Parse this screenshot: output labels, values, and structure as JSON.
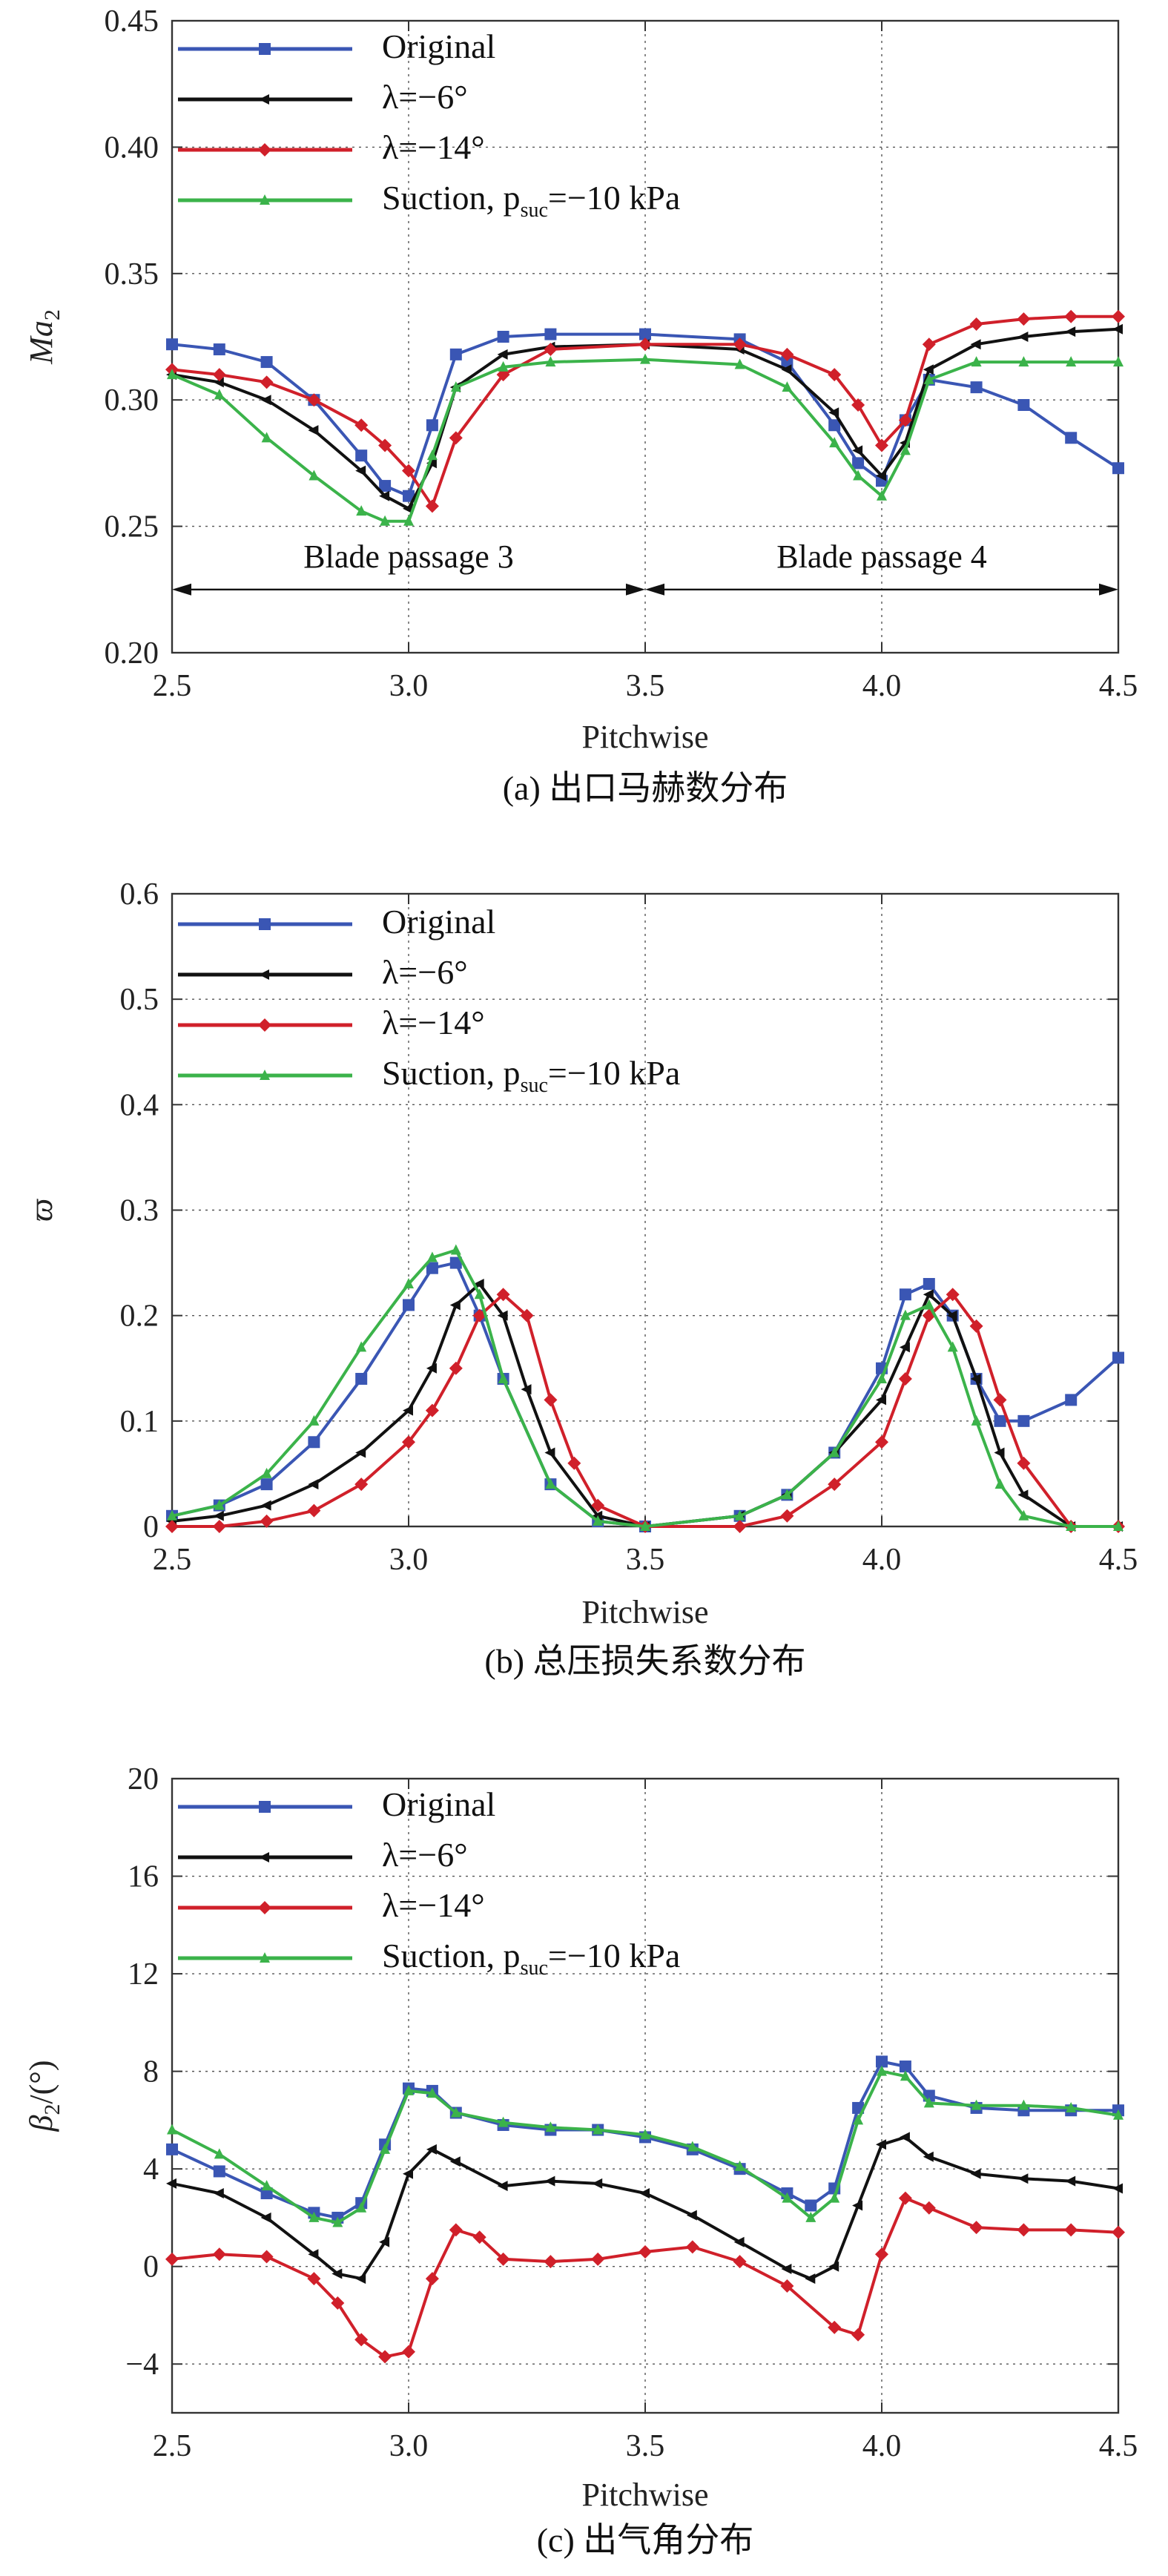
{
  "legend_labels": {
    "original": "Original",
    "lam6": "λ=−6°",
    "lam14": "λ=−14°",
    "suction": "Suction, p",
    "suction_sub": "suc",
    "suction_tail": "=−10 kPa"
  },
  "colors": {
    "original": "#3a56b4",
    "lam6": "#111111",
    "lam14": "#d0202a",
    "suction": "#3bb34a"
  },
  "chart_data": [
    {
      "type": "line",
      "caption": "(a) 出口马赫数分布",
      "xlabel": "Pitchwise",
      "ylabel_main": "Ma",
      "ylabel_sub": "2",
      "xlim": [
        2.5,
        4.5
      ],
      "ylim": [
        0.2,
        0.45
      ],
      "xticks": [
        "2.5",
        "3.0",
        "3.5",
        "4.0",
        "4.5"
      ],
      "yticks": [
        "0.20",
        "0.25",
        "0.30",
        "0.35",
        "0.40",
        "0.45"
      ],
      "grid": true,
      "legend_position": "top-left",
      "annotations": [
        "Blade passage 3",
        "Blade passage 4"
      ],
      "series": [
        {
          "key": "original",
          "x": [
            2.5,
            2.6,
            2.7,
            2.8,
            2.9,
            2.95,
            3.0,
            3.05,
            3.1,
            3.2,
            3.3,
            3.5,
            3.7,
            3.8,
            3.9,
            3.95,
            4.0,
            4.05,
            4.1,
            4.2,
            4.3,
            4.4,
            4.5
          ],
          "y": [
            0.322,
            0.32,
            0.315,
            0.3,
            0.278,
            0.266,
            0.262,
            0.29,
            0.318,
            0.325,
            0.326,
            0.326,
            0.324,
            0.315,
            0.29,
            0.275,
            0.268,
            0.292,
            0.308,
            0.305,
            0.298,
            0.285,
            0.273
          ]
        },
        {
          "key": "lam6",
          "x": [
            2.5,
            2.6,
            2.7,
            2.8,
            2.9,
            2.95,
            3.0,
            3.05,
            3.1,
            3.2,
            3.3,
            3.5,
            3.7,
            3.8,
            3.9,
            3.95,
            4.0,
            4.05,
            4.1,
            4.2,
            4.3,
            4.4,
            4.5
          ],
          "y": [
            0.31,
            0.307,
            0.3,
            0.288,
            0.272,
            0.262,
            0.257,
            0.275,
            0.305,
            0.318,
            0.321,
            0.322,
            0.32,
            0.312,
            0.295,
            0.28,
            0.27,
            0.283,
            0.312,
            0.322,
            0.325,
            0.327,
            0.328
          ]
        },
        {
          "key": "lam14",
          "x": [
            2.5,
            2.6,
            2.7,
            2.8,
            2.9,
            2.95,
            3.0,
            3.05,
            3.1,
            3.2,
            3.3,
            3.5,
            3.7,
            3.8,
            3.9,
            3.95,
            4.0,
            4.05,
            4.1,
            4.2,
            4.3,
            4.4,
            4.5
          ],
          "y": [
            0.312,
            0.31,
            0.307,
            0.3,
            0.29,
            0.282,
            0.272,
            0.258,
            0.285,
            0.31,
            0.32,
            0.322,
            0.322,
            0.318,
            0.31,
            0.298,
            0.282,
            0.292,
            0.322,
            0.33,
            0.332,
            0.333,
            0.333
          ]
        },
        {
          "key": "suction",
          "x": [
            2.5,
            2.6,
            2.7,
            2.8,
            2.9,
            2.95,
            3.0,
            3.05,
            3.1,
            3.2,
            3.3,
            3.5,
            3.7,
            3.8,
            3.9,
            3.95,
            4.0,
            4.05,
            4.1,
            4.2,
            4.3,
            4.4,
            4.5
          ],
          "y": [
            0.31,
            0.302,
            0.285,
            0.27,
            0.256,
            0.252,
            0.252,
            0.278,
            0.305,
            0.313,
            0.315,
            0.316,
            0.314,
            0.305,
            0.283,
            0.27,
            0.262,
            0.28,
            0.308,
            0.315,
            0.315,
            0.315,
            0.315
          ]
        }
      ]
    },
    {
      "type": "line",
      "caption": "(b) 总压损失系数分布",
      "xlabel": "Pitchwise",
      "ylabel_main": "ϖ",
      "ylabel_sub": "",
      "xlim": [
        2.5,
        4.5
      ],
      "ylim": [
        0,
        0.6
      ],
      "xticks": [
        "2.5",
        "3.0",
        "3.5",
        "4.0",
        "4.5"
      ],
      "yticks": [
        "0",
        "0.1",
        "0.2",
        "0.3",
        "0.4",
        "0.5",
        "0.6"
      ],
      "grid": true,
      "legend_position": "top-left",
      "series": [
        {
          "key": "original",
          "x": [
            2.5,
            2.6,
            2.7,
            2.8,
            2.9,
            3.0,
            3.05,
            3.1,
            3.15,
            3.2,
            3.3,
            3.4,
            3.5,
            3.7,
            3.8,
            3.9,
            4.0,
            4.05,
            4.1,
            4.15,
            4.2,
            4.25,
            4.3,
            4.4,
            4.5
          ],
          "y": [
            0.01,
            0.02,
            0.04,
            0.08,
            0.14,
            0.21,
            0.245,
            0.25,
            0.2,
            0.14,
            0.04,
            0.005,
            0.0,
            0.01,
            0.03,
            0.07,
            0.15,
            0.22,
            0.23,
            0.2,
            0.14,
            0.1,
            0.1,
            0.12,
            0.16
          ]
        },
        {
          "key": "lam6",
          "x": [
            2.5,
            2.6,
            2.7,
            2.8,
            2.9,
            3.0,
            3.05,
            3.1,
            3.15,
            3.2,
            3.25,
            3.3,
            3.4,
            3.5,
            3.7,
            3.8,
            3.9,
            4.0,
            4.05,
            4.1,
            4.15,
            4.2,
            4.25,
            4.3,
            4.4,
            4.5
          ],
          "y": [
            0.005,
            0.01,
            0.02,
            0.04,
            0.07,
            0.11,
            0.15,
            0.21,
            0.23,
            0.2,
            0.13,
            0.07,
            0.01,
            0.0,
            0.01,
            0.03,
            0.07,
            0.12,
            0.17,
            0.22,
            0.2,
            0.14,
            0.07,
            0.03,
            0.0,
            0.0
          ]
        },
        {
          "key": "lam14",
          "x": [
            2.5,
            2.6,
            2.7,
            2.8,
            2.9,
            3.0,
            3.05,
            3.1,
            3.15,
            3.2,
            3.25,
            3.3,
            3.35,
            3.4,
            3.5,
            3.7,
            3.8,
            3.9,
            4.0,
            4.05,
            4.1,
            4.15,
            4.2,
            4.25,
            4.3,
            4.4,
            4.5
          ],
          "y": [
            0.0,
            0.0,
            0.005,
            0.015,
            0.04,
            0.08,
            0.11,
            0.15,
            0.2,
            0.22,
            0.2,
            0.12,
            0.06,
            0.02,
            0.0,
            0.0,
            0.01,
            0.04,
            0.08,
            0.14,
            0.2,
            0.22,
            0.19,
            0.12,
            0.06,
            0.0,
            0.0
          ]
        },
        {
          "key": "suction",
          "x": [
            2.5,
            2.6,
            2.7,
            2.8,
            2.9,
            3.0,
            3.05,
            3.1,
            3.15,
            3.2,
            3.3,
            3.4,
            3.5,
            3.7,
            3.8,
            3.9,
            4.0,
            4.05,
            4.1,
            4.15,
            4.2,
            4.25,
            4.3,
            4.4,
            4.5
          ],
          "y": [
            0.01,
            0.02,
            0.05,
            0.1,
            0.17,
            0.23,
            0.255,
            0.262,
            0.22,
            0.14,
            0.04,
            0.005,
            0.0,
            0.01,
            0.03,
            0.07,
            0.14,
            0.2,
            0.21,
            0.17,
            0.1,
            0.04,
            0.01,
            0.0,
            0.0
          ]
        }
      ]
    },
    {
      "type": "line",
      "caption": "(c) 出气角分布",
      "xlabel": "Pitchwise",
      "ylabel_main": "β",
      "ylabel_sub": "2",
      "ylabel_tail": "/(°)",
      "xlim": [
        2.5,
        4.5
      ],
      "ylim": [
        -6,
        20
      ],
      "xticks": [
        "2.5",
        "3.0",
        "3.5",
        "4.0",
        "4.5"
      ],
      "yticks": [
        "−4",
        "0",
        "4",
        "8",
        "12",
        "16",
        "20"
      ],
      "ytick_values": [
        -4,
        0,
        4,
        8,
        12,
        16,
        20
      ],
      "grid": true,
      "legend_position": "top-left",
      "series": [
        {
          "key": "original",
          "x": [
            2.5,
            2.6,
            2.7,
            2.8,
            2.85,
            2.9,
            2.95,
            3.0,
            3.05,
            3.1,
            3.2,
            3.3,
            3.4,
            3.5,
            3.6,
            3.7,
            3.8,
            3.85,
            3.9,
            3.95,
            4.0,
            4.05,
            4.1,
            4.2,
            4.3,
            4.4,
            4.5
          ],
          "y": [
            4.8,
            3.9,
            3.0,
            2.2,
            2.0,
            2.6,
            5.0,
            7.3,
            7.2,
            6.3,
            5.8,
            5.6,
            5.6,
            5.3,
            4.8,
            4.0,
            3.0,
            2.5,
            3.2,
            6.5,
            8.4,
            8.2,
            7.0,
            6.5,
            6.4,
            6.4,
            6.4
          ]
        },
        {
          "key": "lam6",
          "x": [
            2.5,
            2.6,
            2.7,
            2.8,
            2.85,
            2.9,
            2.95,
            3.0,
            3.05,
            3.1,
            3.2,
            3.3,
            3.4,
            3.5,
            3.6,
            3.7,
            3.8,
            3.85,
            3.9,
            3.95,
            4.0,
            4.05,
            4.1,
            4.2,
            4.3,
            4.4,
            4.5
          ],
          "y": [
            3.4,
            3.0,
            2.0,
            0.5,
            -0.3,
            -0.5,
            1.0,
            3.8,
            4.8,
            4.3,
            3.3,
            3.5,
            3.4,
            3.0,
            2.1,
            1.0,
            -0.1,
            -0.5,
            0.0,
            2.5,
            5.0,
            5.3,
            4.5,
            3.8,
            3.6,
            3.5,
            3.2
          ]
        },
        {
          "key": "lam14",
          "x": [
            2.5,
            2.6,
            2.7,
            2.8,
            2.85,
            2.9,
            2.95,
            3.0,
            3.05,
            3.1,
            3.15,
            3.2,
            3.3,
            3.4,
            3.5,
            3.6,
            3.7,
            3.8,
            3.9,
            3.95,
            4.0,
            4.05,
            4.1,
            4.2,
            4.3,
            4.4,
            4.5
          ],
          "y": [
            0.3,
            0.5,
            0.4,
            -0.5,
            -1.5,
            -3.0,
            -3.7,
            -3.5,
            -0.5,
            1.5,
            1.2,
            0.3,
            0.2,
            0.3,
            0.6,
            0.8,
            0.2,
            -0.8,
            -2.5,
            -2.8,
            0.5,
            2.8,
            2.4,
            1.6,
            1.5,
            1.5,
            1.4
          ]
        },
        {
          "key": "suction",
          "x": [
            2.5,
            2.6,
            2.7,
            2.8,
            2.85,
            2.9,
            2.95,
            3.0,
            3.05,
            3.1,
            3.2,
            3.3,
            3.4,
            3.5,
            3.6,
            3.7,
            3.8,
            3.85,
            3.9,
            3.95,
            4.0,
            4.05,
            4.1,
            4.2,
            4.3,
            4.4,
            4.5
          ],
          "y": [
            5.6,
            4.6,
            3.3,
            2.0,
            1.8,
            2.4,
            4.8,
            7.2,
            7.1,
            6.3,
            5.9,
            5.7,
            5.6,
            5.4,
            4.9,
            4.1,
            2.8,
            2.0,
            2.8,
            6.0,
            8.0,
            7.8,
            6.7,
            6.6,
            6.6,
            6.5,
            6.2
          ]
        }
      ]
    }
  ]
}
